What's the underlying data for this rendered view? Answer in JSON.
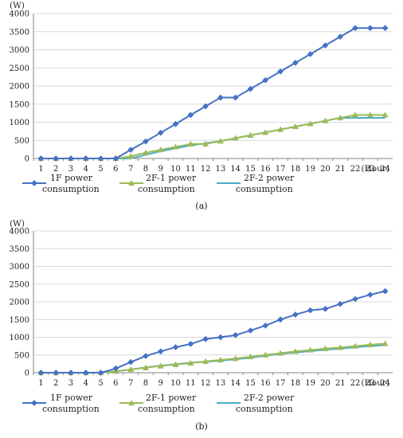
{
  "chart_data": [
    {
      "type": "line",
      "caption": "(a)",
      "y_unit": "(W)",
      "x_unit": "(Hour)",
      "categories": [
        "1",
        "2",
        "3",
        "4",
        "5",
        "6",
        "7",
        "8",
        "9",
        "10",
        "11",
        "12",
        "13",
        "14",
        "15",
        "16",
        "17",
        "18",
        "19",
        "20",
        "21",
        "22",
        "23",
        "24"
      ],
      "y_ticks": [
        "0",
        "500",
        "1000",
        "1500",
        "2000",
        "2500",
        "3000",
        "3500",
        "4000"
      ],
      "ylim": [
        0,
        4000
      ],
      "grid": true,
      "legend_position": "bottom",
      "series": [
        {
          "name_lines": [
            "1F power",
            "consumption"
          ],
          "color": "#4472C4",
          "marker": "diamond",
          "values": [
            0,
            0,
            0,
            0,
            0,
            0,
            240,
            470,
            710,
            950,
            1200,
            1440,
            1680,
            1680,
            1920,
            2160,
            2400,
            2640,
            2880,
            3120,
            3360,
            3600,
            3600,
            3600
          ]
        },
        {
          "name_lines": [
            "2F-1 power",
            "consumption"
          ],
          "color": "#9BBB59",
          "marker": "triangle",
          "values": [
            0,
            0,
            0,
            0,
            0,
            0,
            60,
            160,
            240,
            320,
            400,
            400,
            480,
            560,
            640,
            720,
            800,
            880,
            960,
            1040,
            1120,
            1200,
            1200,
            1200
          ]
        },
        {
          "name_lines": [
            "2F-2 power",
            "consumption"
          ],
          "color": "#4BACC6",
          "marker": "none",
          "values": [
            0,
            0,
            0,
            0,
            0,
            0,
            0,
            100,
            200,
            280,
            360,
            420,
            480,
            560,
            640,
            720,
            800,
            880,
            960,
            1040,
            1120,
            1120,
            1120,
            1120
          ]
        }
      ]
    },
    {
      "type": "line",
      "caption": "(b)",
      "y_unit": "(W)",
      "x_unit": "(Hour)",
      "categories": [
        "1",
        "2",
        "3",
        "4",
        "5",
        "6",
        "7",
        "8",
        "9",
        "10",
        "11",
        "12",
        "13",
        "14",
        "15",
        "16",
        "17",
        "18",
        "19",
        "20",
        "21",
        "22",
        "23",
        "24"
      ],
      "y_ticks": [
        "0",
        "500",
        "1000",
        "1500",
        "2000",
        "2500",
        "3000",
        "3500",
        "4000"
      ],
      "ylim": [
        0,
        4000
      ],
      "grid": true,
      "legend_position": "bottom",
      "series": [
        {
          "name_lines": [
            "1F power",
            "consumption"
          ],
          "color": "#4472C4",
          "marker": "diamond",
          "values": [
            0,
            0,
            0,
            0,
            0,
            120,
            300,
            470,
            600,
            720,
            810,
            950,
            1000,
            1060,
            1190,
            1330,
            1500,
            1640,
            1760,
            1800,
            1940,
            2080,
            2200,
            2300
          ]
        },
        {
          "name_lines": [
            "2F-1 power",
            "consumption"
          ],
          "color": "#9BBB59",
          "marker": "triangle",
          "values": [
            0,
            0,
            0,
            0,
            0,
            40,
            90,
            140,
            190,
            230,
            270,
            320,
            360,
            400,
            450,
            500,
            550,
            600,
            640,
            680,
            710,
            750,
            790,
            820
          ]
        },
        {
          "name_lines": [
            "2F-2 power",
            "consumption"
          ],
          "color": "#4BACC6",
          "marker": "none",
          "values": [
            0,
            0,
            0,
            0,
            0,
            40,
            90,
            150,
            200,
            240,
            280,
            310,
            340,
            380,
            420,
            480,
            530,
            570,
            610,
            650,
            680,
            720,
            750,
            780
          ]
        }
      ]
    }
  ]
}
